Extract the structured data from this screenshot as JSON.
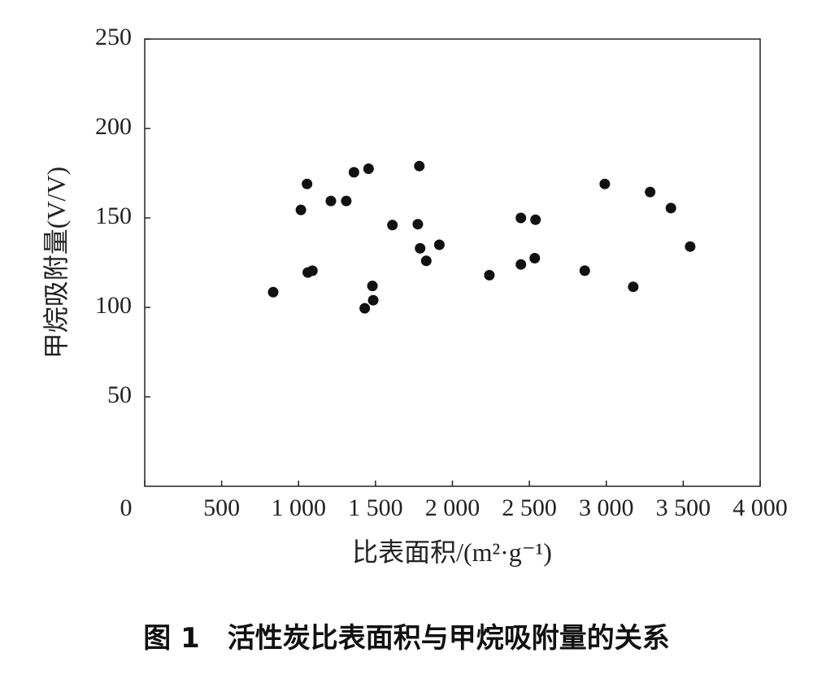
{
  "chart_data": {
    "type": "scatter",
    "caption": "图 1　活性炭比表面积与甲烷吸附量的关系",
    "xlabel": "比表面积/(m²·g⁻¹)",
    "ylabel": "甲烷吸附量(V/V)",
    "color": "#111111",
    "x": [
      835,
      1015,
      1055,
      1060,
      1090,
      1210,
      1310,
      1360,
      1455,
      1430,
      1480,
      1485,
      1610,
      1785,
      1775,
      1790,
      1830,
      1915,
      2240,
      2445,
      2445,
      2540,
      2535,
      2860,
      2990,
      3175,
      3285,
      3420,
      3545
    ],
    "values": [
      108.5,
      154.5,
      169,
      119.5,
      120.5,
      159.5,
      159.5,
      175.5,
      177.5,
      99.5,
      112,
      104,
      146,
      179,
      146.5,
      133,
      126,
      135,
      118,
      150,
      124,
      149,
      127.5,
      120.5,
      169,
      111.5,
      164.5,
      155.5,
      134
    ],
    "xlim": [
      0,
      4000
    ],
    "ylim": [
      0,
      250
    ],
    "xticks": [
      0,
      500,
      {
        "value": 1000,
        "label": "1 000"
      },
      {
        "value": 1500,
        "label": "1 500"
      },
      {
        "value": 2000,
        "label": "2 000"
      },
      {
        "value": 2500,
        "label": "2 500"
      },
      {
        "value": 3000,
        "label": "3 000"
      },
      {
        "value": 3500,
        "label": "3 500"
      },
      {
        "value": 4000,
        "label": "4 000"
      }
    ],
    "yticks": [
      50,
      100,
      150,
      200,
      250
    ]
  }
}
